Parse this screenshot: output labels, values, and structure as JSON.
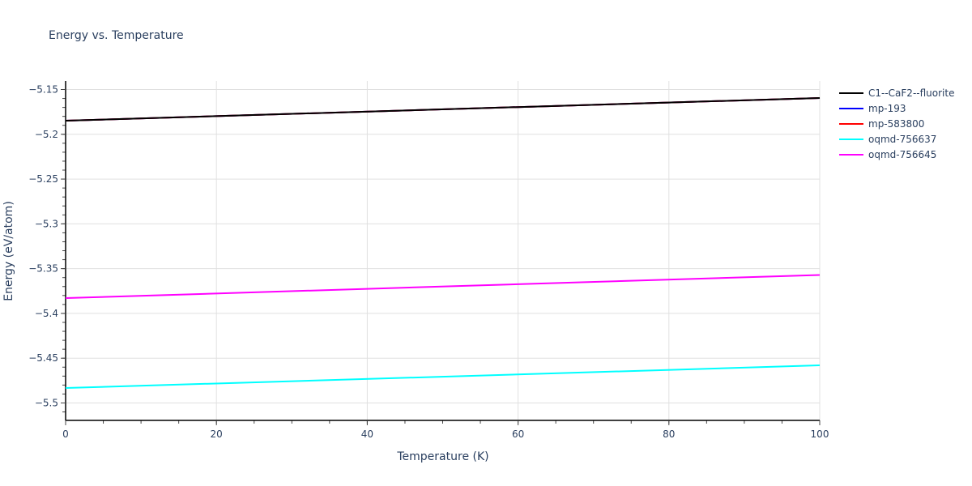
{
  "chart_data": {
    "type": "line",
    "title": "Energy vs. Temperature",
    "xlabel": "Temperature (K)",
    "ylabel": "Energy (eV/atom)",
    "xlim": [
      0,
      100
    ],
    "ylim": [
      -5.52,
      -5.14
    ],
    "x_ticks": [
      0,
      20,
      40,
      60,
      80,
      100
    ],
    "x_tick_labels": [
      "0",
      "20",
      "40",
      "60",
      "80",
      "100"
    ],
    "y_ticks": [
      -5.15,
      -5.2,
      -5.25,
      -5.3,
      -5.35,
      -5.4,
      -5.45,
      -5.5
    ],
    "y_tick_labels": [
      "−5.15",
      "−5.2",
      "−5.25",
      "−5.3",
      "−5.35",
      "−5.4",
      "−5.45",
      "−5.5"
    ],
    "grid": true,
    "legend_position": "right",
    "series": [
      {
        "name": "C1--CaF2--fluorite",
        "color": "#000000",
        "x": [
          0,
          100
        ],
        "y": [
          -5.1848,
          -5.1595
        ]
      },
      {
        "name": "mp-193",
        "color": "#0000ff",
        "x": [
          0,
          100
        ],
        "y": [
          -5.1848,
          -5.1595
        ]
      },
      {
        "name": "mp-583800",
        "color": "#ff0000",
        "x": [
          0,
          100
        ],
        "y": [
          -5.1848,
          -5.1595
        ]
      },
      {
        "name": "oqmd-756637",
        "color": "#00ffff",
        "x": [
          0,
          100
        ],
        "y": [
          -5.4833,
          -5.458
        ]
      },
      {
        "name": "oqmd-756645",
        "color": "#ff00ff",
        "x": [
          0,
          100
        ],
        "y": [
          -5.3829,
          -5.3571
        ]
      }
    ]
  }
}
